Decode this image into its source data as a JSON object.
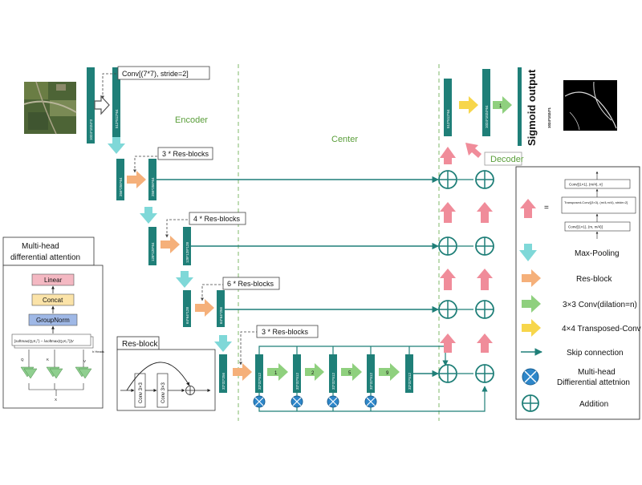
{
  "sections": {
    "encoder": "Encoder",
    "center": "Center",
    "decoder": "Decoder"
  },
  "callouts": {
    "stem_conv": "Conv[(7*7), stride=2]",
    "enc1_res": "3 * Res-blocks",
    "enc2_res": "4 * Res-blocks",
    "enc3_res": "6 * Res-blocks",
    "enc4_res": "3 * Res-blocks"
  },
  "output": {
    "title": "Sigmoid output",
    "size": "1024*1024*1"
  },
  "feature_labels": {
    "input": "1024*1024*3",
    "stem": "512*512*64",
    "enc1_in": "256*256*64",
    "enc1_out": "256*256*64",
    "enc2_in": "128*128*64",
    "enc2_out": "128*128*128",
    "enc3_in": "64*64*128",
    "enc3_out": "64*64*256",
    "enc4_in": "32*32*256",
    "c1": "32*32*512",
    "c2": "32*32*512",
    "c3": "32*32*512",
    "c4": "32*32*512",
    "c5": "32*32*512",
    "dec_out1": "512*512*64",
    "dec_out2": "1024*1024*64"
  },
  "dilations": [
    "1",
    "2",
    "5",
    "9"
  ],
  "final_conv_label": "1",
  "mhda_panel": {
    "title": "Multi-head differential attention",
    "linear": "Linear",
    "concat": "Concat",
    "groupnorm": "GroupNorm",
    "formula": "[softmax(Q₁K₁ᵀ) − λsoftmax(Q₂K₂ᵀ)]V",
    "heads": "h Heads",
    "q": "Q",
    "k": "K",
    "v": "V",
    "x": "X"
  },
  "resblock_panel": {
    "title": "Res-block",
    "conv1": "Conv 3×3",
    "conv2": "Conv 3×3"
  },
  "legend": {
    "upsample_eq": "=",
    "upsample_steps": [
      "Conv[(1×1), (m/4), n]",
      "Transposed-Conv[(3×3), (m/4,m/4), stride=2]",
      "Conv[(1×1), (m, m/4)]"
    ],
    "items": [
      {
        "icon": "max-pooling-arrow",
        "label": "Max-Pooling"
      },
      {
        "icon": "res-block-arrow",
        "label": "Res-block"
      },
      {
        "icon": "dilated-conv-arrow",
        "label": "3×3 Conv(dilation=n)"
      },
      {
        "icon": "transposed-conv-arrow",
        "label": "4×4 Transposed-Conv"
      },
      {
        "icon": "skip-connection-arrow",
        "label": "Skip connection"
      },
      {
        "icon": "attention-circle",
        "label": "Multi-head Diffierential attetnion"
      },
      {
        "icon": "addition-circle",
        "label": "Addition"
      }
    ]
  },
  "colors": {
    "teal": "#1f7f78",
    "cyan": "#7fd8d8",
    "orange": "#f5b07a",
    "green": "#8fd07e",
    "yellow": "#f7d64b",
    "pink": "#f08c9a",
    "blue": "#2d86c9",
    "dashed_green": "#7fb86a"
  }
}
